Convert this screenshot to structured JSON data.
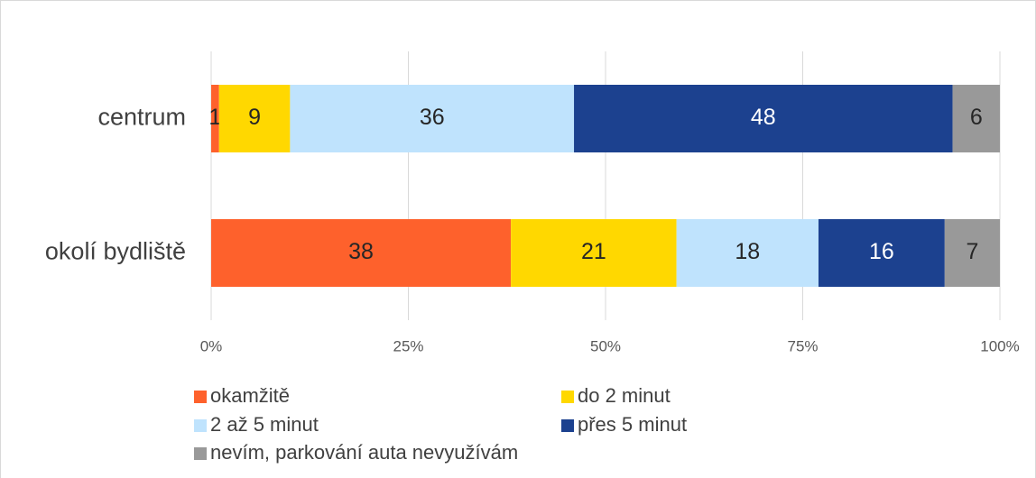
{
  "chart_data": {
    "type": "stacked_bar_horizontal",
    "categories": [
      "centrum",
      "okolí bydliště"
    ],
    "series": [
      {
        "name": "okamžitě",
        "color": "#fe612c",
        "values": [
          1,
          38
        ]
      },
      {
        "name": "do 2 minut",
        "color": "#ffd800",
        "values": [
          9,
          21
        ]
      },
      {
        "name": "2 až 5 minut",
        "color": "#bfe3fd",
        "values": [
          36,
          18
        ]
      },
      {
        "name": "přes 5 minut",
        "color": "#1c418f",
        "values": [
          48,
          16
        ]
      },
      {
        "name": "nevím, parkování auta nevyužívám",
        "color": "#999999",
        "values": [
          6,
          7
        ]
      }
    ],
    "xlim": [
      0,
      100
    ],
    "xticks": [
      {
        "value": 0,
        "label": "0%"
      },
      {
        "value": 25,
        "label": "25%"
      },
      {
        "value": 50,
        "label": "50%"
      },
      {
        "value": 75,
        "label": "75%"
      },
      {
        "value": 100,
        "label": "100%"
      }
    ],
    "grid": true,
    "legend": "bottom"
  }
}
